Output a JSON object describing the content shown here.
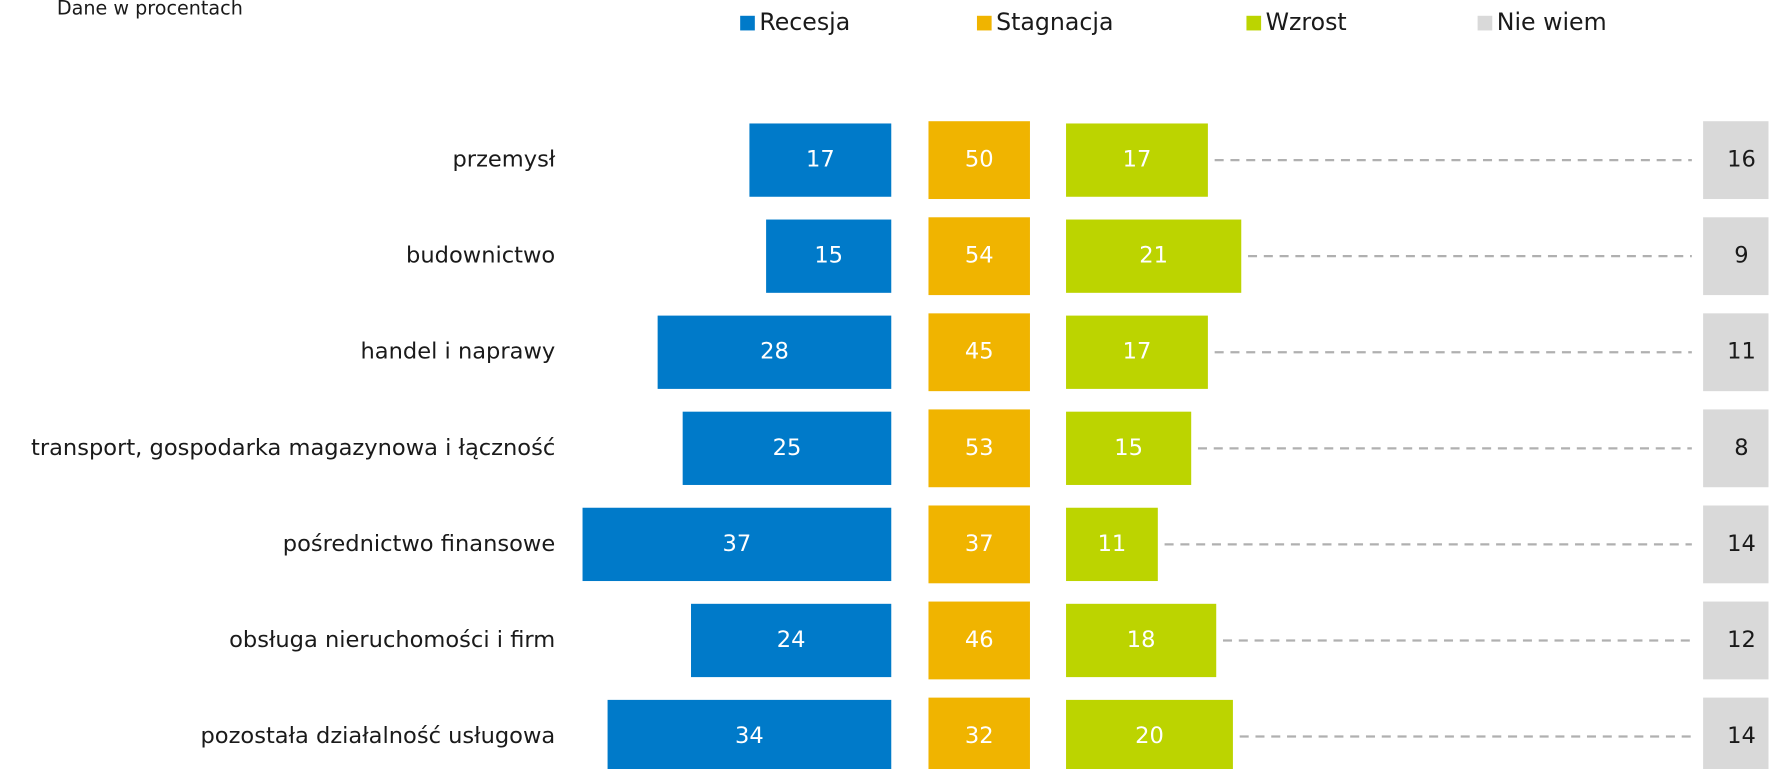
{
  "chart_data": {
    "type": "diverging-bar",
    "subtitle": "Dane w procentach",
    "categories": [
      "przemysł",
      "budownictwo",
      "handel i naprawy",
      "transport, gospodarka magazynowa i łączność",
      "pośrednictwo finansowe",
      "obsługa nieruchomości i firm",
      "pozostała działalność usługowa"
    ],
    "series": [
      {
        "name": "Recesja",
        "color": "#007ac9",
        "values": [
          17,
          15,
          28,
          25,
          37,
          24,
          34
        ]
      },
      {
        "name": "Stagnacja",
        "color": "#f0b400",
        "values": [
          50,
          54,
          45,
          53,
          37,
          46,
          32
        ]
      },
      {
        "name": "Wzrost",
        "color": "#bcd400",
        "values": [
          17,
          21,
          17,
          15,
          11,
          18,
          20
        ]
      },
      {
        "name": "Nie wiem",
        "color": "#d9d9d9",
        "values": [
          16,
          9,
          11,
          8,
          14,
          12,
          14
        ]
      }
    ]
  }
}
